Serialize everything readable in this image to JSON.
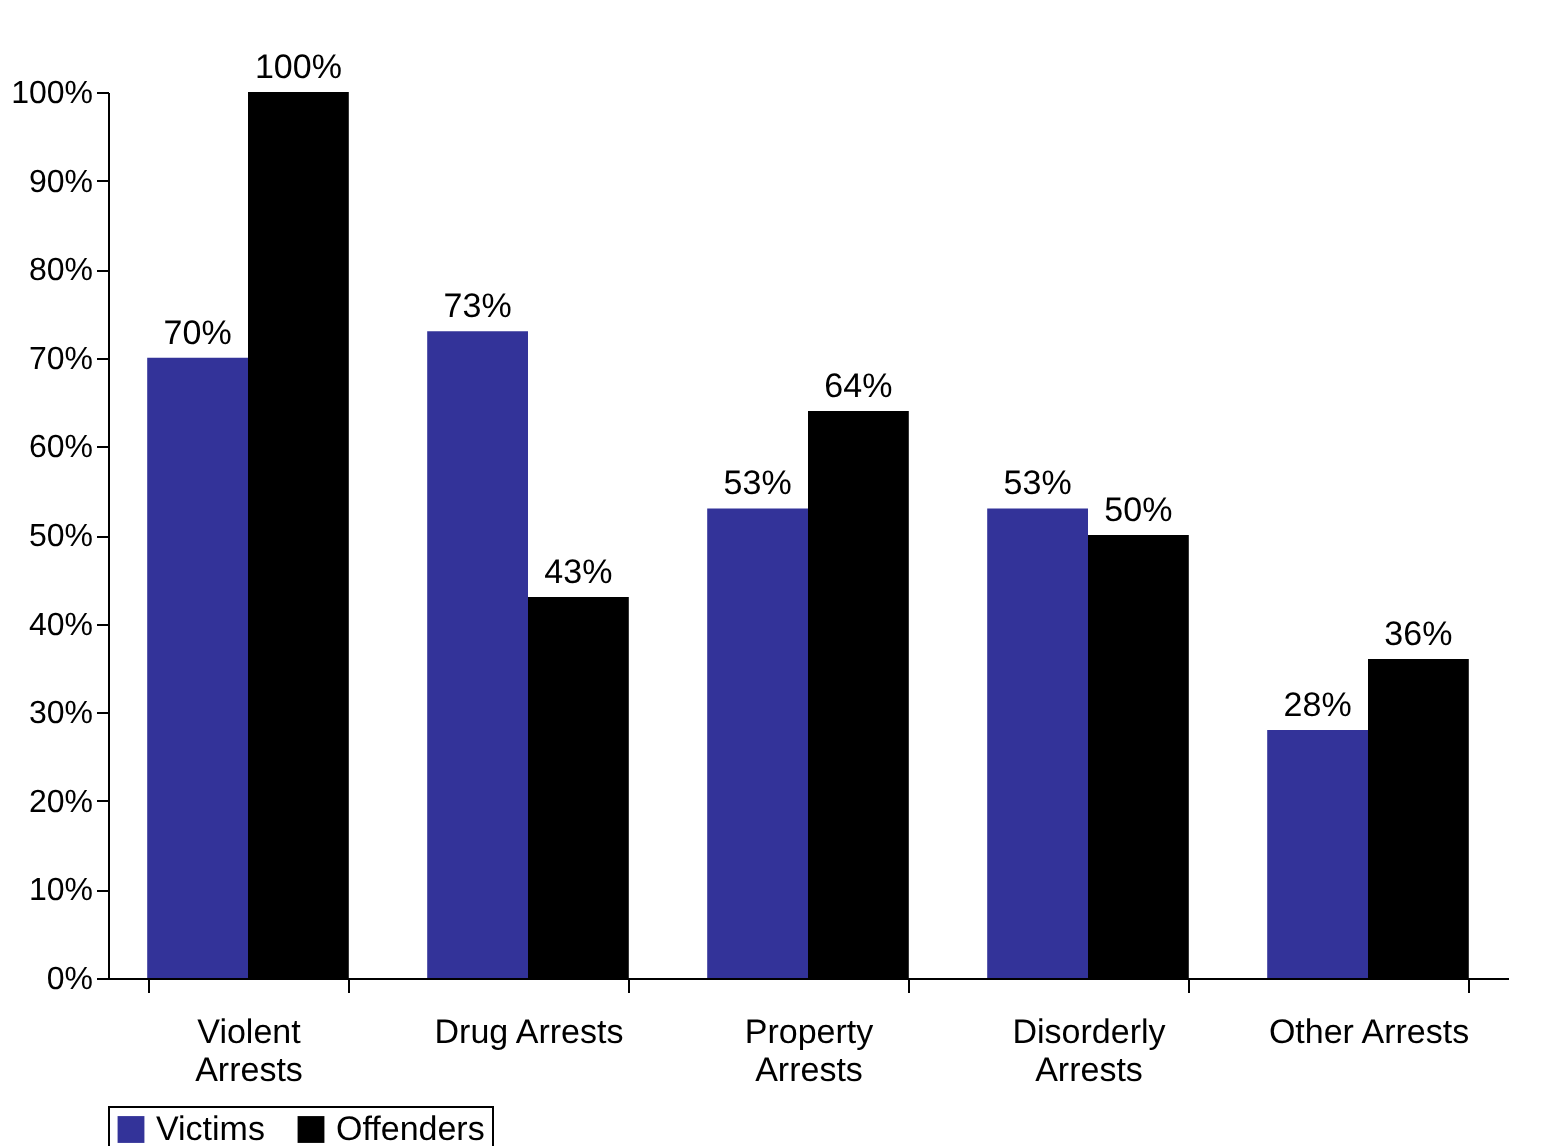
{
  "chart_data": {
    "type": "bar",
    "categories": [
      "Violent Arrests",
      "Drug Arrests",
      "Property Arrests",
      "Disorderly Arrests",
      "Other Arrests"
    ],
    "series": [
      {
        "name": "Victims",
        "color": "#333399",
        "values": [
          70,
          73,
          53,
          53,
          28
        ],
        "value_labels": [
          "70%",
          "73%",
          "53%",
          "53%",
          "28%"
        ]
      },
      {
        "name": "Offenders",
        "color": "#000000",
        "values": [
          100,
          43,
          64,
          50,
          36
        ],
        "value_labels": [
          "100%",
          "43%",
          "64%",
          "50%",
          "36%"
        ]
      }
    ],
    "ylim": [
      0,
      100
    ],
    "yticks": [
      {
        "value": 0,
        "label": "0%"
      },
      {
        "value": 10,
        "label": "10%"
      },
      {
        "value": 20,
        "label": "20%"
      },
      {
        "value": 30,
        "label": "30%"
      },
      {
        "value": 40,
        "label": "40%"
      },
      {
        "value": 50,
        "label": "50%"
      },
      {
        "value": 60,
        "label": "60%"
      },
      {
        "value": 70,
        "label": "70%"
      },
      {
        "value": 80,
        "label": "80%"
      },
      {
        "value": 90,
        "label": "90%"
      },
      {
        "value": 100,
        "label": "100%"
      }
    ],
    "grid": false,
    "legend": "bottom"
  }
}
